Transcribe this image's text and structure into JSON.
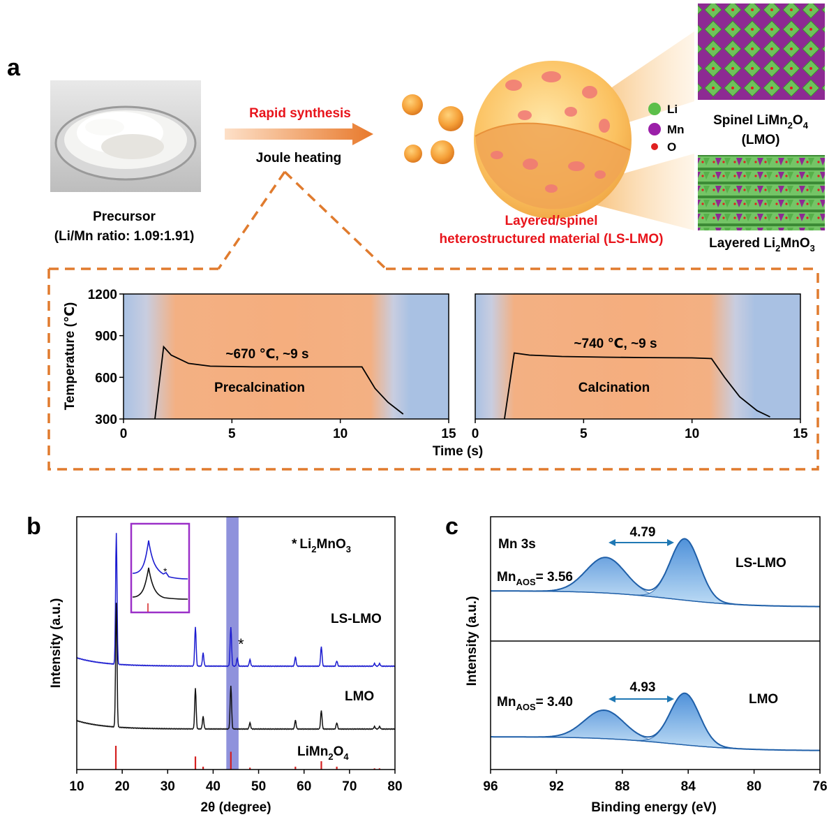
{
  "panel_labels": {
    "a": "a",
    "b": "b",
    "c": "c"
  },
  "schematic": {
    "precursor_label": "Precursor",
    "precursor_ratio": "(Li/Mn ratio: 1.09:1.91)",
    "rapid_synthesis": "Rapid synthesis",
    "joule_heating": "Joule heating",
    "legend": [
      {
        "symbol": "Li",
        "color": "#5cbf4a"
      },
      {
        "symbol": "Mn",
        "color": "#9b1fa8"
      },
      {
        "symbol": "O",
        "color": "#e02020"
      }
    ],
    "spinel_name": "Spinel LiMn",
    "spinel_sub1": "2",
    "spinel_o": "O",
    "spinel_sub2": "4",
    "spinel_abbr": "(LMO)",
    "layered_name": "Layered Li",
    "layered_sub1": "2",
    "layered_mn": "MnO",
    "layered_sub2": "3",
    "material_line1": "Layered/spinel",
    "material_line2": "heterostructured material (LS-LMO)",
    "accent_red": "#e8141b",
    "accent_orange": "#e07b2e"
  },
  "chart_data": [
    {
      "type": "line",
      "id": "precalcination",
      "ylabel": "Temperature (℃)",
      "xlabel": "Time (s)",
      "xlim": [
        0,
        15
      ],
      "ylim": [
        300,
        1200
      ],
      "xticks": [
        "0",
        "5",
        "10",
        "15"
      ],
      "yticks": [
        "300",
        "600",
        "900",
        "1200"
      ],
      "annotation": "~670 ℃, ~9 s",
      "stage": "Precalcination",
      "x": [
        1.45,
        1.85,
        2.2,
        3.0,
        4.0,
        6.0,
        8.0,
        10.0,
        11.0,
        11.6,
        12.2,
        12.9
      ],
      "y": [
        300,
        820,
        760,
        700,
        680,
        675,
        675,
        675,
        675,
        520,
        420,
        335
      ]
    },
    {
      "type": "line",
      "id": "calcination",
      "xlim": [
        0,
        15
      ],
      "ylim": [
        300,
        1200
      ],
      "xticks": [
        "0",
        "5",
        "10",
        "15"
      ],
      "annotation": "~740 ℃, ~9 s",
      "stage": "Calcination",
      "x": [
        1.35,
        1.8,
        2.5,
        4.0,
        6.0,
        8.0,
        10.0,
        10.9,
        11.5,
        12.2,
        13.0,
        13.6
      ],
      "y": [
        300,
        775,
        760,
        750,
        745,
        742,
        740,
        735,
        600,
        460,
        360,
        315
      ]
    },
    {
      "type": "line",
      "id": "xrd",
      "xlabel_pre": "2",
      "xlabel_theta": "θ",
      "xlabel_post": " (degree)",
      "ylabel": "Intensity (a.u.)",
      "xlim": [
        10,
        80
      ],
      "xticks": [
        "10",
        "20",
        "30",
        "40",
        "50",
        "60",
        "70",
        "80"
      ],
      "legend_star": "*",
      "legend_text": "Li",
      "legend_sub1": "2",
      "legend_mn": "MnO",
      "legend_sub2": "3",
      "series": [
        {
          "name": "LS-LMO",
          "color": "#1c1cd0",
          "peaks": [
            [
              18.7,
              1.0
            ],
            [
              36.1,
              0.3
            ],
            [
              37.8,
              0.1
            ],
            [
              43.9,
              0.3
            ],
            [
              45.3,
              0.06
            ],
            [
              48.1,
              0.05
            ],
            [
              58.1,
              0.07
            ],
            [
              63.8,
              0.15
            ],
            [
              67.2,
              0.04
            ],
            [
              75.5,
              0.02
            ],
            [
              76.6,
              0.02
            ]
          ]
        },
        {
          "name": "LMO",
          "color": "#111111",
          "peaks": [
            [
              18.7,
              1.0
            ],
            [
              36.1,
              0.33
            ],
            [
              37.8,
              0.1
            ],
            [
              43.9,
              0.35
            ],
            [
              48.1,
              0.05
            ],
            [
              58.1,
              0.07
            ],
            [
              63.8,
              0.15
            ],
            [
              67.2,
              0.05
            ],
            [
              75.5,
              0.02
            ],
            [
              76.6,
              0.02
            ]
          ]
        },
        {
          "name": "LiMn2O4",
          "label_pre": "LiMn",
          "label_sub1": "2",
          "label_o": "O",
          "label_sub2": "4",
          "color": "#d42020",
          "sticks": [
            [
              18.6,
              1.0
            ],
            [
              36.1,
              0.55
            ],
            [
              37.8,
              0.12
            ],
            [
              43.9,
              0.75
            ],
            [
              48.1,
              0.08
            ],
            [
              58.1,
              0.12
            ],
            [
              63.8,
              0.35
            ],
            [
              67.2,
              0.12
            ],
            [
              75.5,
              0.05
            ],
            [
              76.6,
              0.05
            ]
          ]
        }
      ],
      "highlight_range": [
        42.9,
        45.6
      ],
      "highlight_color": "#7b7fd6"
    },
    {
      "type": "area",
      "id": "xps",
      "xlabel": "Binding energy (eV)",
      "ylabel": "Intensity (a.u.)",
      "xlim": [
        96,
        76
      ],
      "xticks": [
        "96",
        "92",
        "88",
        "84",
        "80",
        "76"
      ],
      "series": [
        {
          "name": "LS-LMO",
          "orbital": "Mn 3s",
          "mn_pre": "Mn",
          "mn_sub": "AOS",
          "aos_value": "= 3.56",
          "splitting": "4.79",
          "peak1": {
            "center": 89.0,
            "height": 0.58,
            "width": 1.7
          },
          "peak2": {
            "center": 84.2,
            "height": 1.0,
            "width": 1.25
          }
        },
        {
          "name": "LMO",
          "mn_pre": "Mn",
          "mn_sub": "AOS",
          "aos_value": "= 3.40",
          "splitting": "4.93",
          "peak1": {
            "center": 89.1,
            "height": 0.55,
            "width": 1.7
          },
          "peak2": {
            "center": 84.2,
            "height": 1.0,
            "width": 1.25
          }
        }
      ],
      "fill_color": "#4a90d9",
      "line_color": "#1f5fa8",
      "arrow_color": "#1f78b4"
    }
  ]
}
